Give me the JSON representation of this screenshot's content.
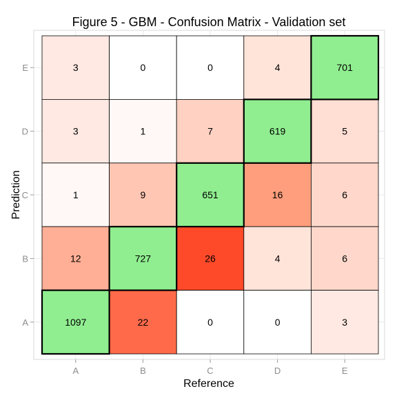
{
  "chart_data": {
    "type": "heatmap",
    "title": "Figure 5 - GBM - Confusion Matrix - Validation set",
    "xlabel": "Reference",
    "ylabel": "Prediction",
    "x_categories": [
      "A",
      "B",
      "C",
      "D",
      "E"
    ],
    "y_categories": [
      "A",
      "B",
      "C",
      "D",
      "E"
    ],
    "cells": [
      {
        "prediction": "E",
        "reference": "A",
        "value": 3,
        "color": "#FFE9E2"
      },
      {
        "prediction": "E",
        "reference": "B",
        "value": 0,
        "color": "#FFFFFF"
      },
      {
        "prediction": "E",
        "reference": "C",
        "value": 0,
        "color": "#FFFFFF"
      },
      {
        "prediction": "E",
        "reference": "D",
        "value": 4,
        "color": "#FFE4DA"
      },
      {
        "prediction": "E",
        "reference": "E",
        "value": 701,
        "color": "#90EE90"
      },
      {
        "prediction": "D",
        "reference": "A",
        "value": 3,
        "color": "#FFE9E2"
      },
      {
        "prediction": "D",
        "reference": "B",
        "value": 1,
        "color": "#FFF8F6"
      },
      {
        "prediction": "D",
        "reference": "C",
        "value": 7,
        "color": "#FFD1C3"
      },
      {
        "prediction": "D",
        "reference": "D",
        "value": 619,
        "color": "#90EE90"
      },
      {
        "prediction": "D",
        "reference": "E",
        "value": 5,
        "color": "#FFDED4"
      },
      {
        "prediction": "C",
        "reference": "A",
        "value": 1,
        "color": "#FFF8F6"
      },
      {
        "prediction": "C",
        "reference": "B",
        "value": 9,
        "color": "#FFC6B3"
      },
      {
        "prediction": "C",
        "reference": "C",
        "value": 651,
        "color": "#90EE90"
      },
      {
        "prediction": "C",
        "reference": "D",
        "value": 16,
        "color": "#FF9E7D"
      },
      {
        "prediction": "C",
        "reference": "E",
        "value": 6,
        "color": "#FFD8CB"
      },
      {
        "prediction": "B",
        "reference": "A",
        "value": 12,
        "color": "#FFAF95"
      },
      {
        "prediction": "B",
        "reference": "B",
        "value": 727,
        "color": "#90EE90"
      },
      {
        "prediction": "B",
        "reference": "C",
        "value": 26,
        "color": "#FF4A2A"
      },
      {
        "prediction": "B",
        "reference": "D",
        "value": 4,
        "color": "#FFE4DA"
      },
      {
        "prediction": "B",
        "reference": "E",
        "value": 6,
        "color": "#FFD8CB"
      },
      {
        "prediction": "A",
        "reference": "A",
        "value": 1097,
        "color": "#90EE90"
      },
      {
        "prediction": "A",
        "reference": "B",
        "value": 22,
        "color": "#FF6A4A"
      },
      {
        "prediction": "A",
        "reference": "C",
        "value": 0,
        "color": "#FFFFFF"
      },
      {
        "prediction": "A",
        "reference": "D",
        "value": 0,
        "color": "#FFFFFF"
      },
      {
        "prediction": "A",
        "reference": "E",
        "value": 3,
        "color": "#FFE9E2"
      }
    ],
    "diagonal_color": "#90EE90",
    "grid": true
  }
}
